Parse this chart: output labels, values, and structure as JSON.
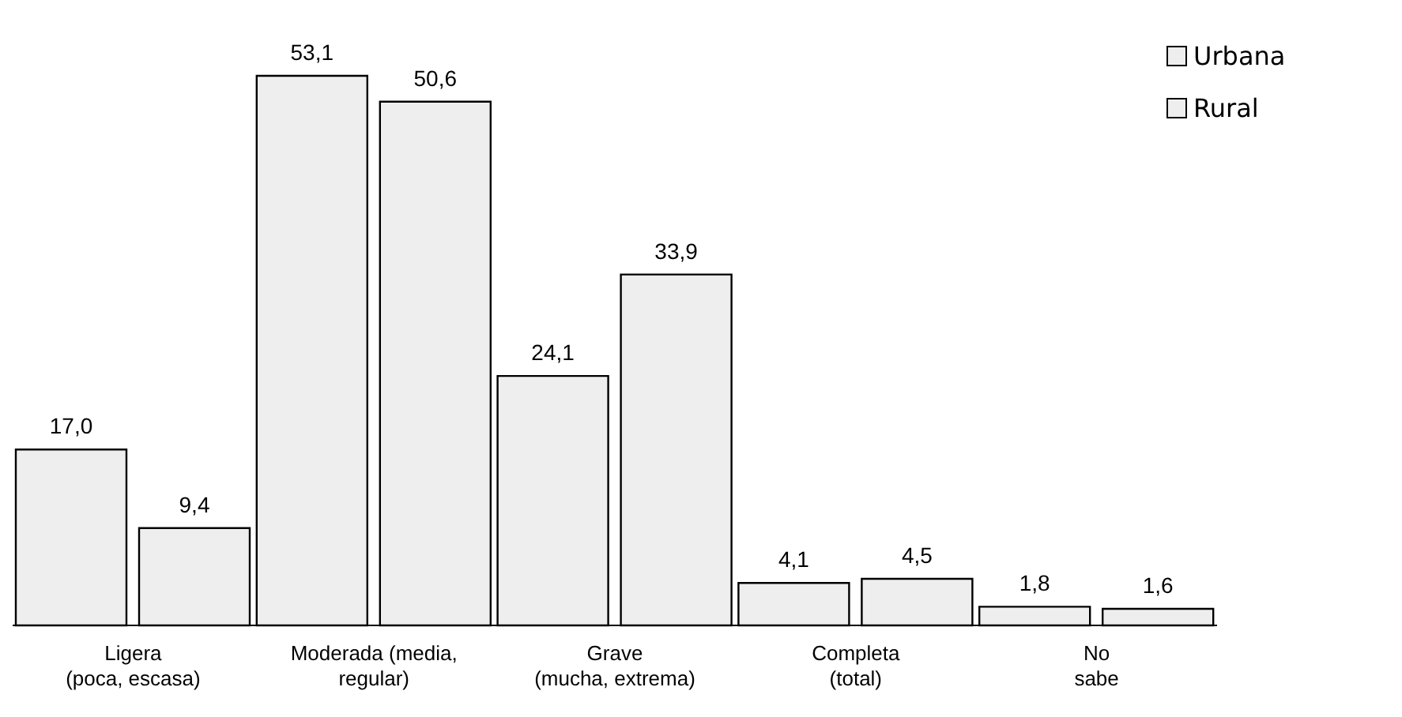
{
  "chart_data": {
    "type": "bar",
    "categories": [
      "Ligera\n(poca, escasa)",
      "Moderada (media,\nregular)",
      "Grave\n(mucha, extrema)",
      "Completa\n(total)",
      "No\nsabe"
    ],
    "series": [
      {
        "name": "Urbana",
        "color": "#eeeeee",
        "values": [
          17.0,
          53.1,
          24.1,
          4.1,
          1.8
        ],
        "value_labels": [
          "17,0",
          "53,1",
          "24,1",
          "4,1",
          "1,8"
        ]
      },
      {
        "name": "Rural",
        "color": "#eeeeee",
        "values": [
          9.4,
          50.6,
          33.9,
          4.5,
          1.6
        ],
        "value_labels": [
          "9,4",
          "50,6",
          "33,9",
          "4,5",
          "1,6"
        ]
      }
    ],
    "legend": "top right",
    "grid": false
  }
}
